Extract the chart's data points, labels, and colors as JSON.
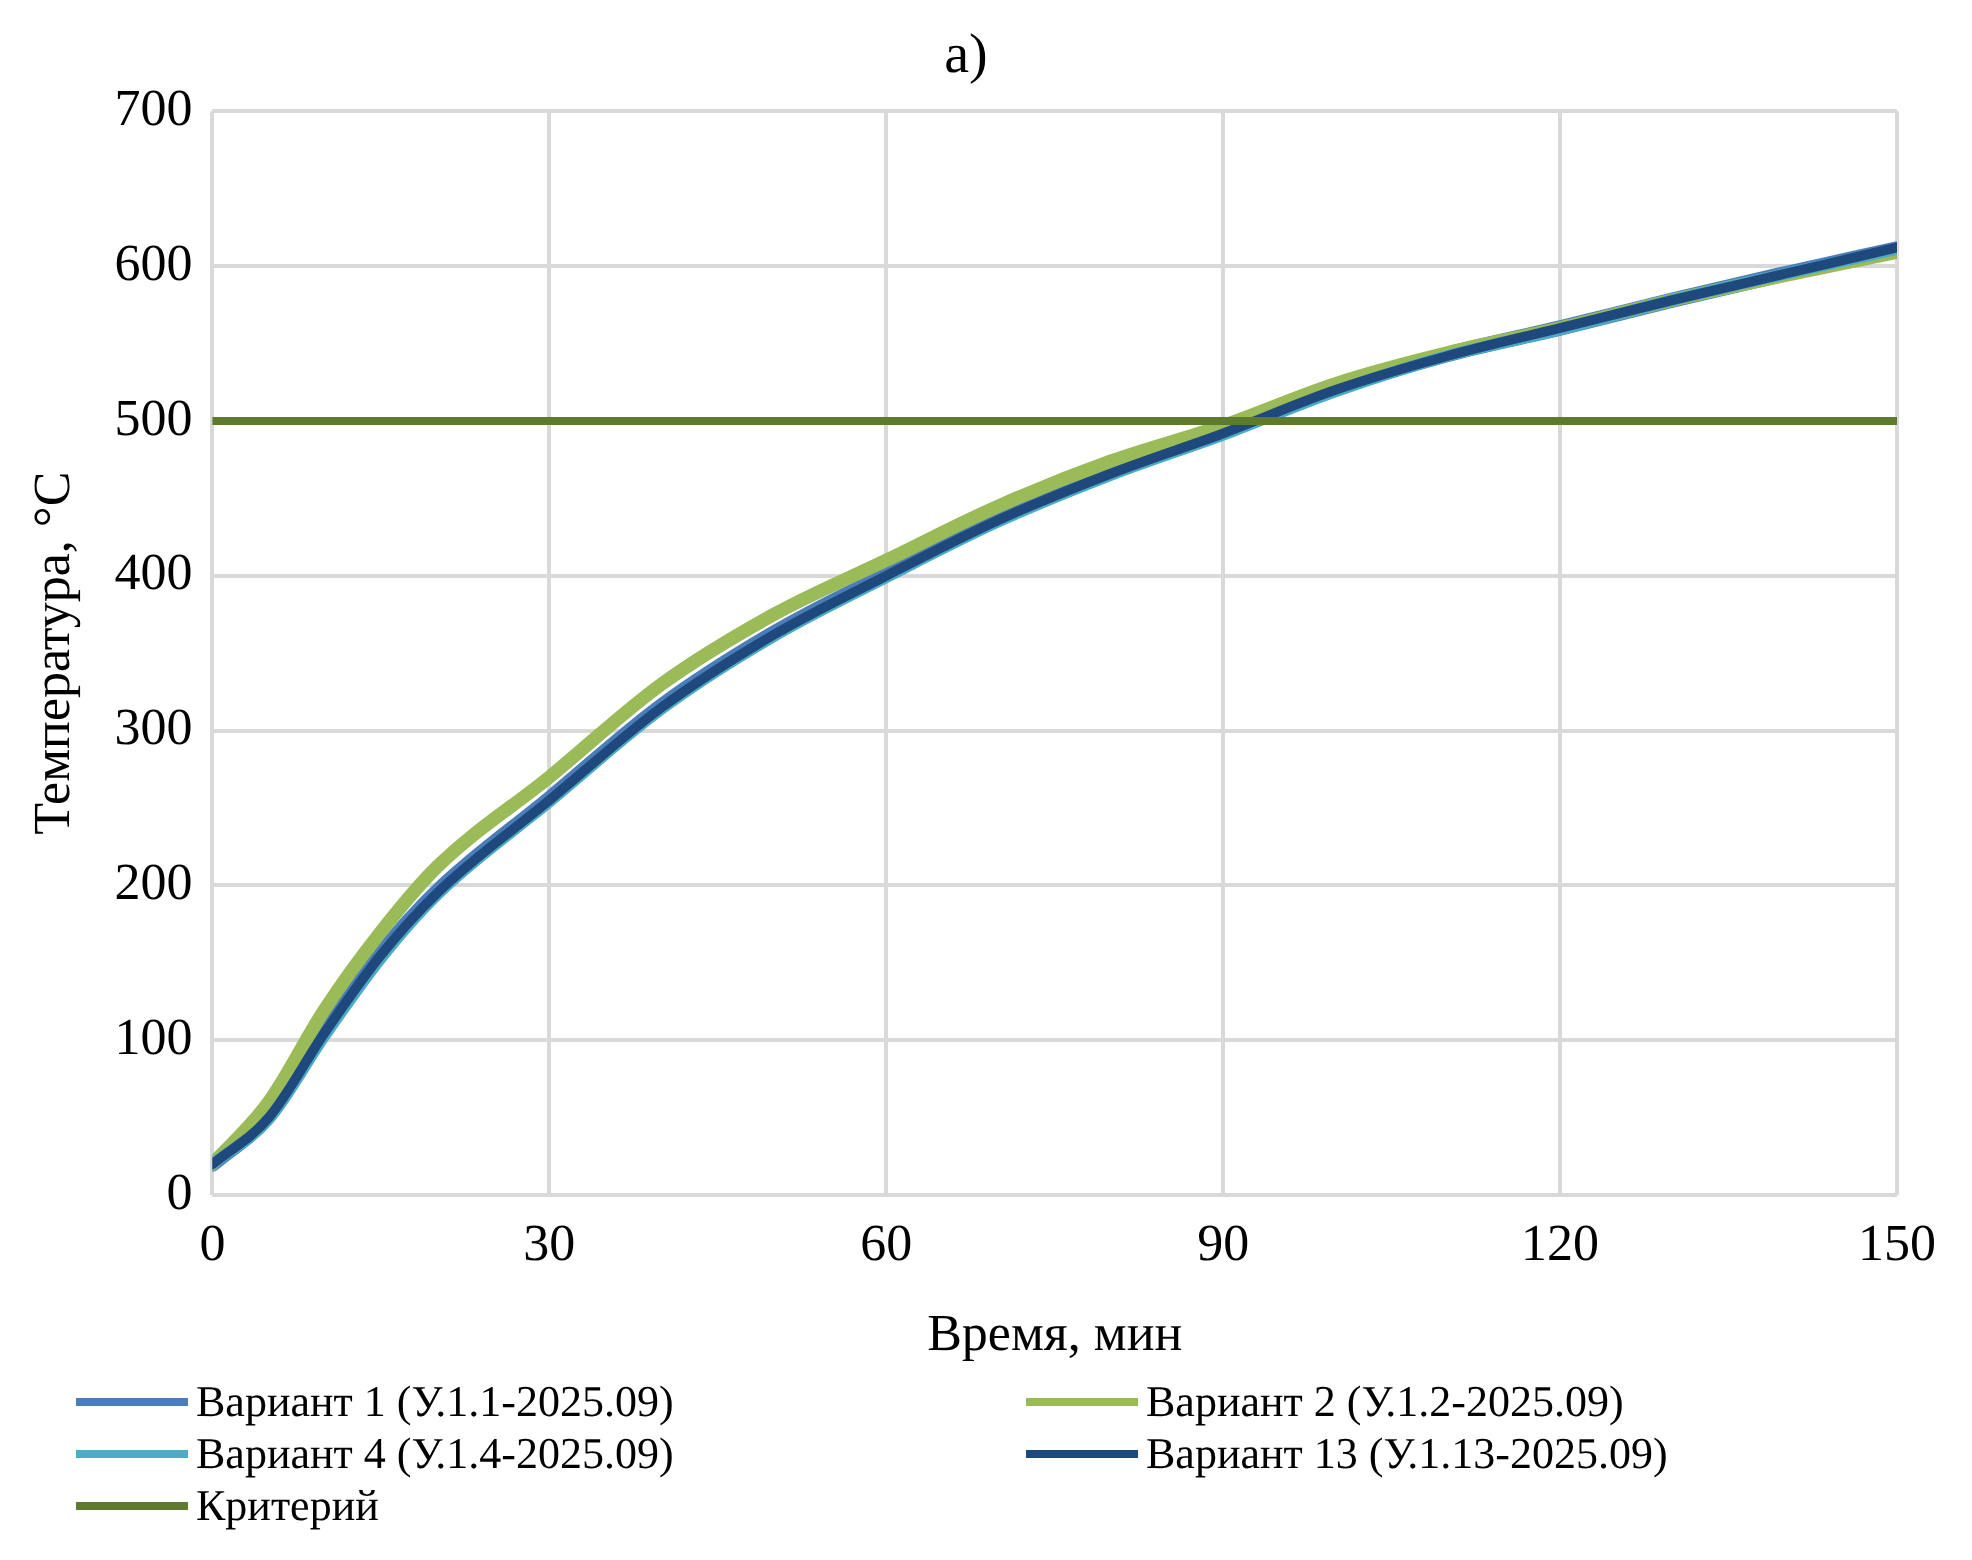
{
  "chart_data": {
    "type": "line",
    "title": "а)",
    "xlabel": "Время, мин",
    "ylabel": "Температура, °C",
    "x": [
      0,
      5,
      10,
      15,
      20,
      30,
      40,
      50,
      60,
      70,
      80,
      90,
      100,
      110,
      120,
      130,
      140,
      150
    ],
    "xlim": [
      0,
      150
    ],
    "xticks": [
      0,
      30,
      60,
      90,
      120,
      150
    ],
    "ylim": [
      0,
      700
    ],
    "yticks": [
      0,
      100,
      200,
      300,
      400,
      500,
      600,
      700
    ],
    "grid": true,
    "legend": "bottom",
    "marker": "none",
    "line_style": "solid",
    "series": [
      {
        "name": "Вариант 1 (У.1.1-2025.09)",
        "color": "#4a7ebb",
        "values": [
          20,
          51,
          106,
          156,
          196,
          256,
          316,
          363,
          401,
          437,
          467,
          493,
          521,
          543,
          560,
          578,
          595,
          611
        ]
      },
      {
        "name": "Вариант 2 (У.1.2-2025.09)",
        "color": "#9bbb59",
        "values": [
          20,
          60,
          120,
          170,
          212,
          270,
          330,
          375,
          410,
          445,
          474,
          497,
          524,
          544,
          560,
          578,
          594,
          609
        ]
      },
      {
        "name": "Вариант 4 (У.1.4-2025.09)",
        "color": "#4bacc6",
        "values": [
          20,
          49,
          103,
          153,
          194,
          254,
          314,
          361,
          399,
          435,
          465,
          491,
          519,
          542,
          559,
          578,
          595,
          611
        ]
      },
      {
        "name": "Вариант 13 (У.1.13-2025.09)",
        "color": "#1f497d",
        "values": [
          20,
          50,
          105,
          155,
          195,
          255,
          315,
          362,
          400,
          436,
          466,
          492,
          520,
          542,
          560,
          578,
          595,
          612
        ]
      },
      {
        "name": "Критерий",
        "color": "#5e7a2e",
        "type": "line",
        "x": [
          0,
          150
        ],
        "values": [
          500,
          500
        ]
      }
    ]
  }
}
